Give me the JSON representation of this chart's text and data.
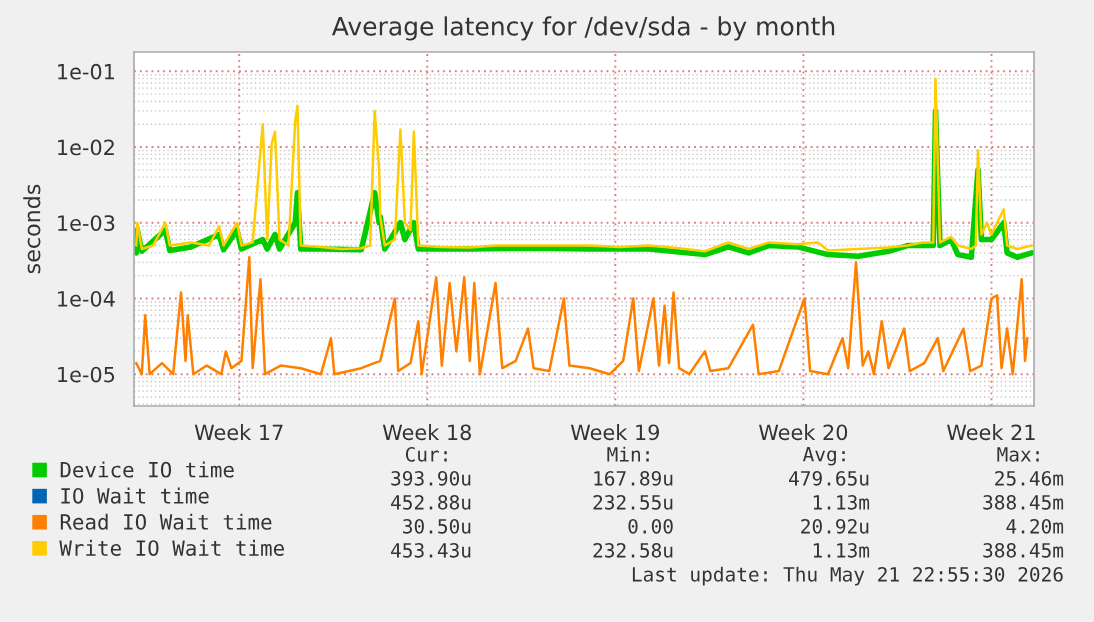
{
  "chart_data": {
    "type": "line",
    "title": "Average latency for /dev/sda - by month",
    "ylabel": "seconds",
    "log": "y",
    "grid": true,
    "legend": "bottom left",
    "xlim": [
      "2026-04-18T14:00",
      "2026-05-22T02:00"
    ],
    "xticks": [
      {
        "value": "2026-04-22T12:00",
        "label": "Week 17"
      },
      {
        "value": "2026-04-29T12:00",
        "label": "Week 18"
      },
      {
        "value": "2026-05-06T12:00",
        "label": "Week 19"
      },
      {
        "value": "2026-05-13T12:00",
        "label": "Week 20"
      },
      {
        "value": "2026-05-20T12:00",
        "label": "Week 21"
      }
    ],
    "ylim": [
      3.8e-06,
      0.18
    ],
    "yticks": [
      {
        "value": 1e-05,
        "label": "1e-05"
      },
      {
        "value": 0.0001,
        "label": "1e-04"
      },
      {
        "value": 0.001,
        "label": "1e-03"
      },
      {
        "value": 0.01,
        "label": "1e-02"
      },
      {
        "value": 0.1,
        "label": "1e-01"
      }
    ],
    "series": [
      {
        "name": "Device IO time",
        "color": "#00cc00",
        "x": [
          "2026-04-18T16:00",
          "2026-04-18T17:00",
          "2026-04-18T21:00",
          "2026-04-19T18:00",
          "2026-04-19T22:00",
          "2026-04-20T17:00",
          "2026-04-21T18:00",
          "2026-04-21T22:00",
          "2026-04-22T10:00",
          "2026-04-22T14:00",
          "2026-04-23T09:00",
          "2026-04-23T13:00",
          "2026-04-23T20:00",
          "2026-04-24T00:00",
          "2026-04-24T14:00",
          "2026-04-24T16:00",
          "2026-04-24T19:00",
          "2026-04-25T13:00",
          "2026-04-27T01:00",
          "2026-04-27T13:00",
          "2026-04-27T17:00",
          "2026-04-27T18:00",
          "2026-04-27T22:00",
          "2026-04-28T12:00",
          "2026-04-28T16:00",
          "2026-04-29T00:00",
          "2026-04-29T04:00",
          "2026-05-01T02:00",
          "2026-05-03T07:00",
          "2026-05-05T13:00",
          "2026-05-07T18:00",
          "2026-05-09T20:00",
          "2026-05-10T17:00",
          "2026-05-11T11:00",
          "2026-05-12T05:00",
          "2026-05-13T07:00",
          "2026-05-14T10:00",
          "2026-05-15T13:00",
          "2026-05-16T16:00",
          "2026-05-17T09:00",
          "2026-05-18T08:00",
          "2026-05-18T10:00",
          "2026-05-18T14:00",
          "2026-05-19T00:00",
          "2026-05-19T06:00",
          "2026-05-19T18:00",
          "2026-05-20T00:00",
          "2026-05-20T03:00",
          "2026-05-20T12:00",
          "2026-05-20T23:00",
          "2026-05-21T02:00",
          "2026-05-21T11:00",
          "2026-05-22T00:00"
        ],
        "values": [
          0.0004,
          0.0008,
          0.00042,
          0.0008,
          0.00043,
          0.00048,
          0.0007,
          0.00044,
          0.0008,
          0.00045,
          0.0006,
          0.00045,
          0.0007,
          0.00045,
          0.001,
          0.0025,
          0.00045,
          0.00045,
          0.00044,
          0.0025,
          0.001,
          0.0012,
          0.00045,
          0.001,
          0.0006,
          0.001,
          0.00045,
          0.00045,
          0.00046,
          0.00045,
          0.00045,
          0.00038,
          0.00048,
          0.0004,
          0.0005,
          0.00048,
          0.00038,
          0.00036,
          0.00042,
          0.0005,
          0.0005,
          0.03,
          0.0005,
          0.0006,
          0.00038,
          0.00035,
          0.005,
          0.0006,
          0.0006,
          0.001,
          0.0004,
          0.00035,
          0.0004
        ]
      },
      {
        "name": "IO Wait time",
        "color": "#0066b3"
      },
      {
        "name": "Read IO Wait time",
        "color": "#ff8000",
        "x": [
          "2026-04-18T16:00",
          "2026-04-18T21:00",
          "2026-04-19T00:00",
          "2026-04-19T04:00",
          "2026-04-19T15:00",
          "2026-04-20T01:00",
          "2026-04-20T08:00",
          "2026-04-20T12:00",
          "2026-04-20T14:00",
          "2026-04-20T19:00",
          "2026-04-21T07:00",
          "2026-04-21T20:00",
          "2026-04-22T00:00",
          "2026-04-22T05:00",
          "2026-04-22T14:00",
          "2026-04-22T21:00",
          "2026-04-23T00:00",
          "2026-04-23T07:00",
          "2026-04-23T11:00",
          "2026-04-24T01:00",
          "2026-04-24T19:00",
          "2026-04-25T13:00",
          "2026-04-25T22:00",
          "2026-04-26T01:00",
          "2026-04-27T01:00",
          "2026-04-27T18:00",
          "2026-04-28T07:00",
          "2026-04-28T10:00",
          "2026-04-28T21:00",
          "2026-04-29T04:00",
          "2026-04-29T07:00",
          "2026-04-29T20:00",
          "2026-04-30T01:00",
          "2026-04-30T08:00",
          "2026-04-30T14:00",
          "2026-04-30T21:00",
          "2026-05-01T02:00",
          "2026-05-01T06:00",
          "2026-05-01T11:00",
          "2026-05-02T01:00",
          "2026-05-02T07:00",
          "2026-05-02T19:00",
          "2026-05-03T06:00",
          "2026-05-03T11:00",
          "2026-05-04T01:00",
          "2026-05-04T14:00",
          "2026-05-04T19:00",
          "2026-05-05T13:00",
          "2026-05-06T07:00",
          "2026-05-06T19:00",
          "2026-05-07T04:00",
          "2026-05-07T09:00",
          "2026-05-07T22:00",
          "2026-05-08T03:00",
          "2026-05-08T08:00",
          "2026-05-08T12:00",
          "2026-05-08T16:00",
          "2026-05-08T21:00",
          "2026-05-09T06:00",
          "2026-05-09T20:00",
          "2026-05-10T01:00",
          "2026-05-10T17:00",
          "2026-05-11T15:00",
          "2026-05-11T20:00",
          "2026-05-12T14:00",
          "2026-05-13T13:00",
          "2026-05-13T18:00",
          "2026-05-14T10:00",
          "2026-05-14T23:00",
          "2026-05-15T04:00",
          "2026-05-15T11:00",
          "2026-05-15T17:00",
          "2026-05-15T22:00",
          "2026-05-16T03:00",
          "2026-05-16T10:00",
          "2026-05-16T16:00",
          "2026-05-17T06:00",
          "2026-05-17T11:00",
          "2026-05-18T00:00",
          "2026-05-18T12:00",
          "2026-05-18T17:00",
          "2026-05-19T11:00",
          "2026-05-19T17:00",
          "2026-05-20T03:00",
          "2026-05-20T12:00",
          "2026-05-20T17:00",
          "2026-05-20T21:00",
          "2026-05-21T02:00",
          "2026-05-21T07:00",
          "2026-05-21T15:00",
          "2026-05-21T18:00",
          "2026-05-21T20:00"
        ],
        "values": [
          1.4e-05,
          1e-05,
          6e-05,
          1e-05,
          1.4e-05,
          1e-05,
          0.00012,
          1.5e-05,
          6e-05,
          1e-05,
          1.3e-05,
          1e-05,
          2e-05,
          1.2e-05,
          1.5e-05,
          0.00035,
          1.2e-05,
          0.00018,
          1e-05,
          1.3e-05,
          1.2e-05,
          1e-05,
          3e-05,
          1e-05,
          1.2e-05,
          1.5e-05,
          0.0001,
          1.1e-05,
          1.4e-05,
          5e-05,
          1e-05,
          0.00019,
          1.3e-05,
          0.00016,
          2e-05,
          0.00019,
          1.5e-05,
          0.00016,
          1e-05,
          0.00016,
          1.2e-05,
          1.5e-05,
          4e-05,
          1.2e-05,
          1.1e-05,
          0.0001,
          1.3e-05,
          1.2e-05,
          1e-05,
          1.5e-05,
          0.0001,
          1.1e-05,
          0.0001,
          1.3e-05,
          8e-05,
          1.4e-05,
          0.00012,
          1.2e-05,
          1e-05,
          2e-05,
          1.1e-05,
          1.2e-05,
          4.5e-05,
          1e-05,
          1.1e-05,
          0.0001,
          1.1e-05,
          1e-05,
          3e-05,
          1.2e-05,
          0.0003,
          1.3e-05,
          2e-05,
          1e-05,
          5e-05,
          1.2e-05,
          4e-05,
          1.1e-05,
          1.4e-05,
          3e-05,
          1.1e-05,
          4e-05,
          1.1e-05,
          1.3e-05,
          0.0001,
          0.00011,
          1.2e-05,
          4e-05,
          1e-05,
          0.00018,
          1.5e-05,
          3e-05
        ]
      },
      {
        "name": "Write IO Wait time",
        "color": "#ffcc00",
        "x": [
          "2026-04-18T16:00",
          "2026-04-18T17:00",
          "2026-04-18T21:00",
          "2026-04-19T07:00",
          "2026-04-19T18:00",
          "2026-04-19T22:00",
          "2026-04-20T17:00",
          "2026-04-21T09:00",
          "2026-04-21T18:00",
          "2026-04-21T22:00",
          "2026-04-22T10:00",
          "2026-04-22T14:00",
          "2026-04-23T00:00",
          "2026-04-23T09:00",
          "2026-04-23T13:00",
          "2026-04-23T17:00",
          "2026-04-23T20:00",
          "2026-04-24T00:00",
          "2026-04-24T08:00",
          "2026-04-24T14:00",
          "2026-04-24T16:00",
          "2026-04-24T19:00",
          "2026-04-25T13:00",
          "2026-04-26T07:00",
          "2026-04-27T01:00",
          "2026-04-27T09:00",
          "2026-04-27T13:00",
          "2026-04-27T17:00",
          "2026-04-27T18:00",
          "2026-04-27T22:00",
          "2026-04-28T07:00",
          "2026-04-28T12:00",
          "2026-04-28T16:00",
          "2026-04-28T21:00",
          "2026-04-29T00:00",
          "2026-04-29T04:00",
          "2026-04-30T00:00",
          "2026-05-01T02:00",
          "2026-05-02T01:00",
          "2026-05-03T07:00",
          "2026-05-04T10:00",
          "2026-05-05T13:00",
          "2026-05-06T16:00",
          "2026-05-07T18:00",
          "2026-05-08T21:00",
          "2026-05-09T20:00",
          "2026-05-10T17:00",
          "2026-05-11T11:00",
          "2026-05-12T05:00",
          "2026-05-13T07:00",
          "2026-05-14T01:00",
          "2026-05-14T10:00",
          "2026-05-15T13:00",
          "2026-05-16T16:00",
          "2026-05-17T09:00",
          "2026-05-17T22:00",
          "2026-05-18T08:00",
          "2026-05-18T10:00",
          "2026-05-18T14:00",
          "2026-05-19T00:00",
          "2026-05-19T06:00",
          "2026-05-19T18:00",
          "2026-05-19T22:00",
          "2026-05-20T00:00",
          "2026-05-20T03:00",
          "2026-05-20T08:00",
          "2026-05-20T12:00",
          "2026-05-20T17:00",
          "2026-05-20T23:00",
          "2026-05-21T02:00",
          "2026-05-21T11:00",
          "2026-05-22T00:00"
        ],
        "values": [
          0.0005,
          0.001,
          0.00045,
          0.0005,
          0.001,
          0.0005,
          0.00055,
          0.0005,
          0.0009,
          0.0005,
          0.001,
          0.0005,
          0.00055,
          0.02,
          0.0006,
          0.011,
          0.016,
          0.0006,
          0.0005,
          0.022,
          0.035,
          0.0005,
          0.00048,
          0.00045,
          0.00046,
          0.0005,
          0.03,
          0.005,
          0.0012,
          0.0005,
          0.0006,
          0.017,
          0.001,
          0.0008,
          0.016,
          0.0005,
          0.00048,
          0.00047,
          0.0005,
          0.0005,
          0.0005,
          0.0005,
          0.00048,
          0.0005,
          0.00046,
          0.00042,
          0.00055,
          0.00045,
          0.00055,
          0.00052,
          0.00055,
          0.00043,
          0.00045,
          0.00047,
          0.0005,
          0.00055,
          0.00055,
          0.08,
          0.00055,
          0.00065,
          0.0005,
          0.00045,
          0.0005,
          0.009,
          0.0007,
          0.001,
          0.0007,
          0.001,
          0.0015,
          0.0005,
          0.00045,
          0.0005
        ]
      }
    ],
    "annotations": [
      "Cur:",
      "Min:",
      "Avg:",
      "Max:",
      "393.90u",
      "167.89u",
      "479.65u",
      "25.46m",
      "452.88u",
      "232.55u",
      "1.13m",
      "388.45m",
      "30.50u",
      "0.00",
      "20.92u",
      "4.20m",
      "453.43u",
      "232.58u",
      "1.13m",
      "388.45m",
      "Last update: Thu May 21 22:55:30 2026"
    ]
  }
}
